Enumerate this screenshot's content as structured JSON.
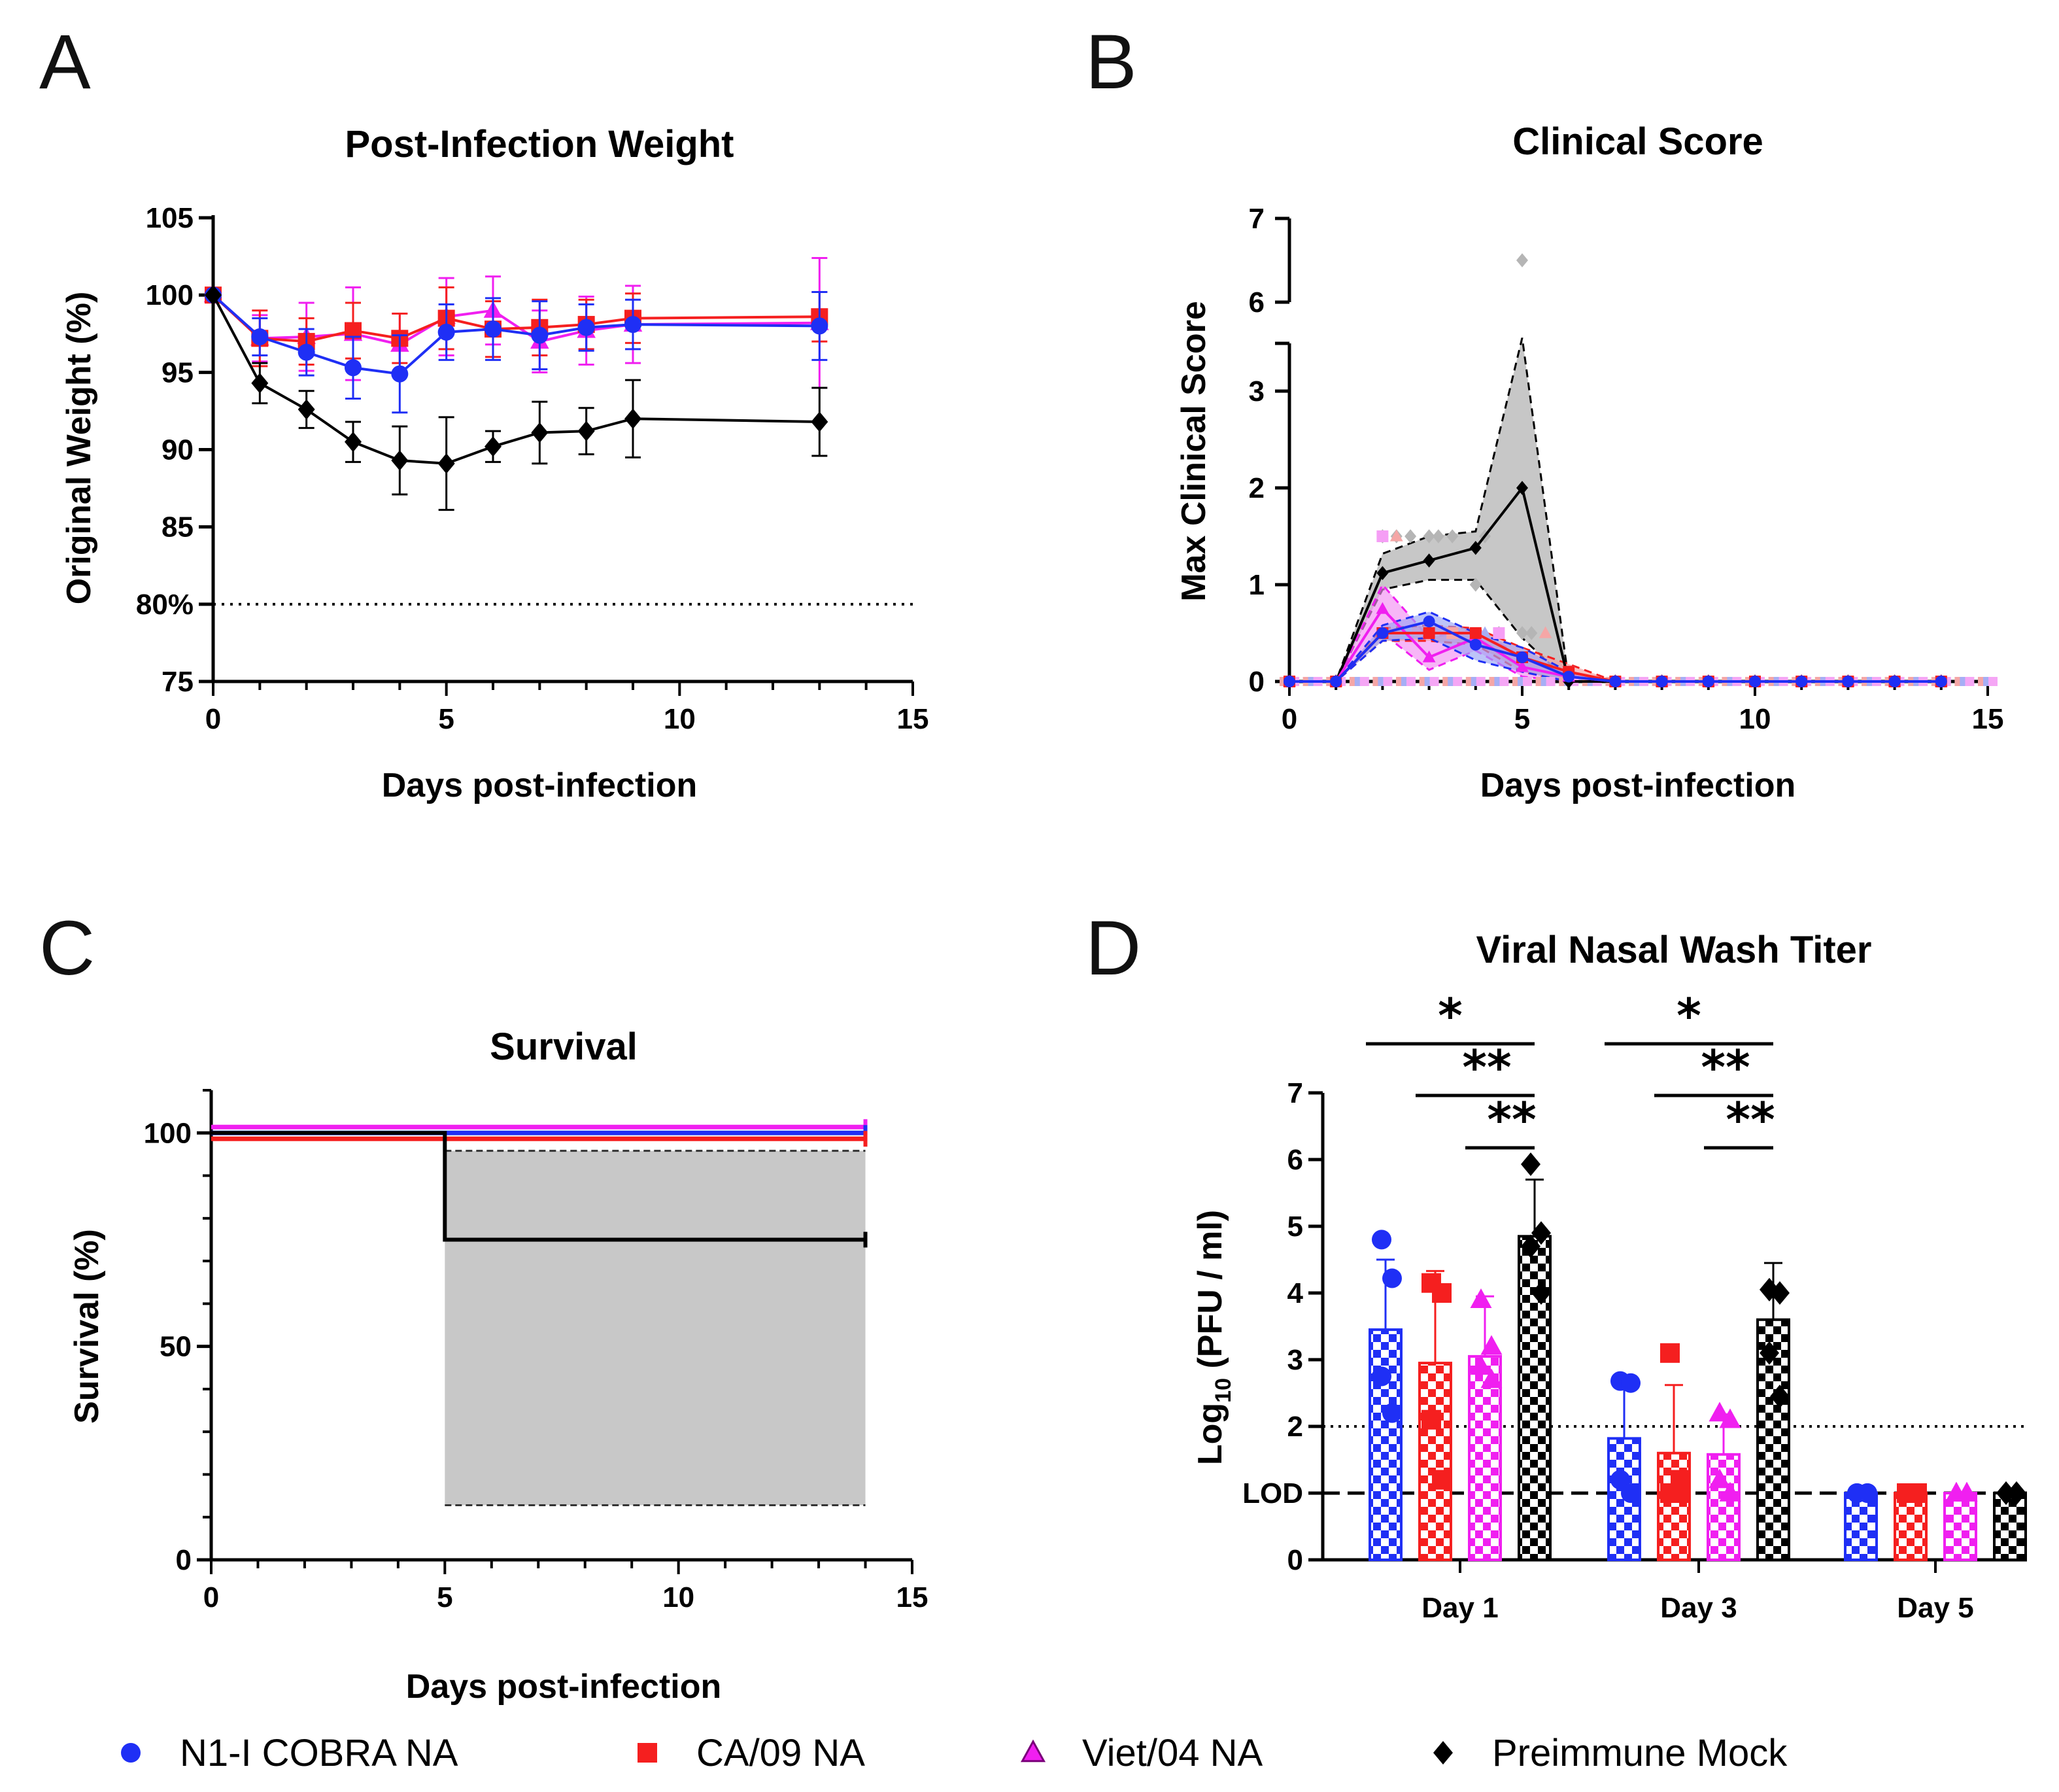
{
  "colors": {
    "n1": "#1f2ff5",
    "ca": "#f51f1f",
    "viet": "#f01ff0",
    "mock": "#000000",
    "band": "#c8c8c8"
  },
  "legend": [
    {
      "key": "n1",
      "label": "N1-I COBRA NA",
      "marker": "circle"
    },
    {
      "key": "ca",
      "label": "CA/09 NA",
      "marker": "square"
    },
    {
      "key": "viet",
      "label": "Viet/04 NA",
      "marker": "triangle"
    },
    {
      "key": "mock",
      "label": "Preimmune Mock",
      "marker": "diamond"
    }
  ],
  "chart_data": [
    {
      "panel": "A",
      "type": "line",
      "title": "Post-Infection Weight",
      "xlabel": "Days post-infection",
      "ylabel": "Original Weight (%)",
      "xlim": [
        0,
        15
      ],
      "ylim": [
        75,
        105
      ],
      "xticks": [
        "0",
        "5",
        "10",
        "15"
      ],
      "yticks": [
        "75",
        "80%",
        "85",
        "90",
        "95",
        "100",
        "105"
      ],
      "reference_line": 80,
      "x": [
        0,
        1,
        2,
        3,
        4,
        5,
        6,
        7,
        8,
        9,
        13
      ],
      "series": [
        {
          "key": "viet",
          "name": "Viet/04 NA",
          "values": [
            100,
            97.2,
            97.3,
            97.5,
            96.8,
            98.6,
            99.0,
            97.0,
            97.7,
            98.1,
            98.2
          ],
          "err": [
            0,
            1.5,
            2.2,
            3.0,
            2.0,
            2.5,
            2.2,
            2.0,
            2.2,
            2.5,
            4.2
          ]
        },
        {
          "key": "ca",
          "name": "CA/09 NA",
          "values": [
            100,
            97.2,
            97.0,
            97.7,
            97.2,
            98.5,
            97.8,
            97.9,
            98.1,
            98.5,
            98.6
          ],
          "err": [
            0,
            1.8,
            1.5,
            1.8,
            1.6,
            2.0,
            1.8,
            1.8,
            1.6,
            1.6,
            1.6
          ]
        },
        {
          "key": "n1",
          "name": "N1-I COBRA NA",
          "values": [
            100,
            97.3,
            96.3,
            95.3,
            94.9,
            97.6,
            97.8,
            97.4,
            97.9,
            98.1,
            98.0
          ],
          "err": [
            0,
            1.2,
            1.5,
            2.0,
            2.5,
            1.8,
            2.0,
            2.2,
            1.5,
            1.6,
            2.2
          ]
        },
        {
          "key": "mock",
          "name": "Preimmune Mock",
          "values": [
            100,
            94.3,
            92.6,
            90.5,
            89.3,
            89.1,
            90.2,
            91.1,
            91.2,
            92.0,
            91.8
          ],
          "err": [
            0,
            1.3,
            1.2,
            1.3,
            2.2,
            3.0,
            1.0,
            2.0,
            1.5,
            2.5,
            2.2
          ]
        }
      ]
    },
    {
      "panel": "B",
      "type": "line",
      "title": "Clinical Score",
      "xlabel": "Days post-infection",
      "ylabel": "Max Clinical Score",
      "xlim": [
        0,
        15
      ],
      "ylim": [
        0,
        7
      ],
      "axis_break": [
        3.5,
        5.7
      ],
      "xticks": [
        "0",
        "5",
        "10",
        "15"
      ],
      "yticks": [
        "0",
        "1",
        "2",
        "3",
        "6",
        "7"
      ],
      "x": [
        0,
        1,
        2,
        3,
        4,
        5,
        6,
        7,
        8,
        9,
        10,
        11,
        12,
        13,
        14
      ],
      "series": [
        {
          "key": "mock",
          "name": "Preimmune Mock",
          "values": [
            0,
            0,
            1.12,
            1.25,
            1.38,
            2.0,
            0,
            0,
            0,
            0,
            0,
            0,
            0,
            0,
            0
          ],
          "lower": [
            0,
            0,
            0.95,
            1.05,
            1.05,
            0.45,
            0,
            0,
            0,
            0,
            0,
            0,
            0,
            0,
            0
          ],
          "upper": [
            0,
            0,
            1.32,
            1.5,
            1.55,
            3.55,
            0,
            0,
            0,
            0,
            0,
            0,
            0,
            0,
            0
          ]
        },
        {
          "key": "viet",
          "name": "Viet/04 NA",
          "values": [
            0,
            0,
            0.75,
            0.25,
            0.45,
            0.15,
            0.05,
            0,
            0,
            0,
            0,
            0,
            0,
            0,
            0
          ],
          "lower": [
            0,
            0,
            0.5,
            0.12,
            0.32,
            0.05,
            0,
            0,
            0,
            0,
            0,
            0,
            0,
            0,
            0
          ],
          "upper": [
            0,
            0,
            1.0,
            0.45,
            0.55,
            0.25,
            0.08,
            0,
            0,
            0,
            0,
            0,
            0,
            0,
            0
          ]
        },
        {
          "key": "ca",
          "name": "CA/09 NA",
          "values": [
            0,
            0,
            0.5,
            0.5,
            0.5,
            0.25,
            0.1,
            0,
            0,
            0,
            0,
            0,
            0,
            0,
            0
          ],
          "lower": [
            0,
            0,
            0.42,
            0.42,
            0.38,
            0.1,
            0,
            0,
            0,
            0,
            0,
            0,
            0,
            0,
            0
          ],
          "upper": [
            0,
            0,
            0.55,
            0.58,
            0.55,
            0.35,
            0.18,
            0,
            0,
            0,
            0,
            0,
            0,
            0,
            0
          ]
        },
        {
          "key": "n1",
          "name": "N1-I COBRA NA",
          "values": [
            0,
            0,
            0.5,
            0.62,
            0.38,
            0.25,
            0.05,
            0,
            0,
            0,
            0,
            0,
            0,
            0,
            0
          ],
          "lower": [
            0,
            0,
            0.42,
            0.45,
            0.22,
            0.1,
            0,
            0,
            0,
            0,
            0,
            0,
            0,
            0,
            0
          ],
          "upper": [
            0,
            0,
            0.58,
            0.72,
            0.5,
            0.35,
            0.1,
            0,
            0,
            0,
            0,
            0,
            0,
            0,
            0
          ]
        }
      ],
      "scatter_mock": [
        [
          2,
          1.5
        ],
        [
          2,
          1.5
        ],
        [
          2.3,
          1.5
        ],
        [
          2.6,
          1.5
        ],
        [
          3,
          1.5
        ],
        [
          3.2,
          1.5
        ],
        [
          3.5,
          1.5
        ],
        [
          4,
          1.0
        ],
        [
          4.2,
          1.5
        ],
        [
          5,
          6.5
        ],
        [
          5,
          0.5
        ],
        [
          5.2,
          0.5
        ],
        [
          4.5,
          0.5
        ]
      ],
      "scatter_other": [
        [
          2,
          1.5
        ],
        [
          2.3,
          1.5
        ],
        [
          2.5,
          0.5
        ],
        [
          3,
          0.5
        ],
        [
          3.5,
          0.5
        ],
        [
          4.2,
          0.5
        ],
        [
          4.5,
          0.5
        ],
        [
          5.5,
          0.5
        ],
        [
          6,
          0.1
        ]
      ]
    },
    {
      "panel": "C",
      "type": "line",
      "title": "Survival",
      "xlabel": "Days post-infection",
      "ylabel": "Survival (%)",
      "xlim": [
        0,
        15
      ],
      "ylim": [
        0,
        110
      ],
      "xticks": [
        "0",
        "5",
        "10",
        "15"
      ],
      "yticks": [
        "0",
        "50",
        "100"
      ],
      "series": [
        {
          "key": "viet",
          "name": "Viet/04 NA",
          "x": [
            0,
            14
          ],
          "values": [
            100,
            100
          ]
        },
        {
          "key": "n1",
          "name": "N1-I COBRA NA",
          "x": [
            0,
            14
          ],
          "values": [
            100,
            100
          ]
        },
        {
          "key": "ca",
          "name": "CA/09 NA",
          "x": [
            0,
            14
          ],
          "values": [
            100,
            100
          ]
        },
        {
          "key": "mock",
          "name": "Preimmune Mock",
          "x": [
            0,
            5,
            5,
            14
          ],
          "values": [
            100,
            100,
            75,
            75
          ],
          "ci_x": [
            5,
            14
          ],
          "ci_lower": 12.8,
          "ci_upper": 95.8
        }
      ]
    },
    {
      "panel": "D",
      "type": "bar",
      "title": "Viral Nasal Wash Titer",
      "xlabel": "",
      "ylabel_main": "Log",
      "ylabel_sub": "10",
      "ylabel_rest": " (PFU / ml)",
      "ylim": [
        0,
        7
      ],
      "yticks": [
        "0",
        "LOD",
        "2",
        "3",
        "4",
        "5",
        "6",
        "7"
      ],
      "lod": 1,
      "dotted_line": 2,
      "categories": [
        "Day 1",
        "Day 3",
        "Day 5"
      ],
      "series": [
        {
          "key": "n1",
          "name": "N1-I COBRA NA",
          "values": [
            3.45,
            1.82,
            1.0
          ],
          "err": [
            1.05,
            0.85,
            0
          ],
          "points": [
            [
              4.8,
              4.22,
              2.75,
              2.2
            ],
            [
              2.68,
              2.65,
              1.2,
              1.0
            ],
            [
              1.0,
              1.0,
              1.0,
              1.0
            ]
          ]
        },
        {
          "key": "ca",
          "name": "CA/09 NA",
          "values": [
            2.95,
            1.6,
            1.0
          ],
          "err": [
            1.38,
            1.02,
            0
          ],
          "points": [
            [
              4.15,
              4.0,
              2.1,
              1.2
            ],
            [
              3.1,
              1.2,
              1.0,
              1.0
            ],
            [
              1.0,
              1.0,
              1.0,
              1.0
            ]
          ]
        },
        {
          "key": "viet",
          "name": "Viet/04 NA",
          "values": [
            3.05,
            1.58,
            1.0
          ],
          "err": [
            0.9,
            0.6,
            0
          ],
          "points": [
            [
              3.9,
              3.2,
              2.9,
              2.7
            ],
            [
              2.2,
              2.1,
              1.2,
              1.0
            ],
            [
              1.0,
              1.0,
              1.0,
              1.0
            ]
          ]
        },
        {
          "key": "mock",
          "name": "Preimmune Mock",
          "values": [
            4.85,
            3.6,
            1.0
          ],
          "err": [
            0.85,
            0.85,
            0
          ],
          "points": [
            [
              5.93,
              4.9,
              4.7,
              4.0
            ],
            [
              4.05,
              4.0,
              3.1,
              2.45
            ],
            [
              1.0,
              1.0,
              1.0,
              1.0
            ]
          ]
        }
      ],
      "significance": [
        {
          "day": "Day 1",
          "from": "n1",
          "to": "mock",
          "label": "*"
        },
        {
          "day": "Day 1",
          "from": "ca",
          "to": "mock",
          "label": "**"
        },
        {
          "day": "Day 1",
          "from": "viet",
          "to": "mock",
          "label": "**"
        },
        {
          "day": "Day 3",
          "from": "n1",
          "to": "mock",
          "label": "*"
        },
        {
          "day": "Day 3",
          "from": "ca",
          "to": "mock",
          "label": "**"
        },
        {
          "day": "Day 3",
          "from": "viet",
          "to": "mock",
          "label": "**"
        }
      ]
    }
  ]
}
